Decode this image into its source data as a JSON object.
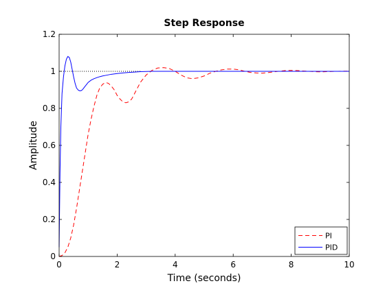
{
  "chart_data": {
    "type": "line",
    "title": "Step Response",
    "xlabel": "Time (seconds)",
    "ylabel": "Amplitude",
    "xlim": [
      0,
      10
    ],
    "ylim": [
      0,
      1.2
    ],
    "xticks": [
      0,
      2,
      4,
      6,
      8,
      10
    ],
    "yticks": [
      0,
      0.2,
      0.4,
      0.6,
      0.8,
      1,
      1.2
    ],
    "xtick_labels": [
      "0",
      "2",
      "4",
      "6",
      "8",
      "10"
    ],
    "ytick_labels": [
      "0",
      "0.2",
      "0.4",
      "0.6",
      "0.8",
      "1",
      "1.2"
    ],
    "grid": false,
    "legend_position": "bottom-right",
    "reference_line": {
      "y": 1,
      "style": "dotted",
      "color": "#000000",
      "x_range": [
        0,
        2.8
      ]
    },
    "series": [
      {
        "name": "PI",
        "color": "#ff0000",
        "style": "dashed",
        "x": [
          0,
          0.1,
          0.2,
          0.3,
          0.4,
          0.5,
          0.6,
          0.7,
          0.8,
          0.9,
          1.0,
          1.1,
          1.2,
          1.3,
          1.4,
          1.5,
          1.6,
          1.7,
          1.8,
          1.9,
          2.0,
          2.1,
          2.2,
          2.3,
          2.4,
          2.5,
          2.6,
          2.7,
          2.8,
          3.0,
          3.2,
          3.4,
          3.6,
          3.8,
          4.0,
          4.2,
          4.4,
          4.6,
          4.8,
          5.0,
          5.2,
          5.4,
          5.6,
          5.8,
          6.0,
          6.2,
          6.4,
          6.6,
          6.8,
          7.0,
          7.2,
          7.4,
          7.6,
          7.8,
          8.0,
          8.2,
          8.4,
          8.6,
          8.8,
          9.0,
          9.2,
          9.4,
          9.6,
          9.8,
          10.0
        ],
        "values": [
          0,
          0.005,
          0.02,
          0.05,
          0.1,
          0.17,
          0.26,
          0.36,
          0.46,
          0.56,
          0.66,
          0.74,
          0.81,
          0.87,
          0.91,
          0.93,
          0.94,
          0.935,
          0.92,
          0.9,
          0.87,
          0.85,
          0.835,
          0.83,
          0.835,
          0.85,
          0.88,
          0.91,
          0.94,
          0.98,
          1.005,
          1.018,
          1.02,
          1.015,
          1.0,
          0.98,
          0.965,
          0.96,
          0.965,
          0.975,
          0.99,
          1.0,
          1.008,
          1.012,
          1.012,
          1.008,
          1.0,
          0.994,
          0.991,
          0.99,
          0.993,
          0.997,
          1.001,
          1.004,
          1.005,
          1.004,
          1.002,
          1.0,
          0.998,
          0.997,
          0.998,
          0.999,
          1.0,
          1.001,
          1.001
        ]
      },
      {
        "name": "PID",
        "color": "#0000ff",
        "style": "solid",
        "x": [
          0,
          0.03,
          0.06,
          0.1,
          0.15,
          0.2,
          0.25,
          0.3,
          0.35,
          0.4,
          0.45,
          0.5,
          0.55,
          0.6,
          0.65,
          0.7,
          0.75,
          0.8,
          0.85,
          0.9,
          0.95,
          1.0,
          1.1,
          1.2,
          1.3,
          1.4,
          1.5,
          1.6,
          1.8,
          2.0,
          2.2,
          2.4,
          2.6,
          2.8,
          3.0,
          3.2,
          3.5,
          4.0,
          5.0,
          6.0,
          7.0,
          8.0,
          9.0,
          10.0
        ],
        "values": [
          0.05,
          0.45,
          0.7,
          0.88,
          0.97,
          1.03,
          1.065,
          1.08,
          1.075,
          1.05,
          1.01,
          0.97,
          0.935,
          0.91,
          0.9,
          0.895,
          0.895,
          0.9,
          0.91,
          0.92,
          0.93,
          0.94,
          0.952,
          0.96,
          0.966,
          0.971,
          0.975,
          0.978,
          0.984,
          0.988,
          0.991,
          0.994,
          0.996,
          0.998,
          0.999,
          1.0,
          1.0,
          1.0,
          1.0,
          1.0,
          1.0,
          1.0,
          1.0,
          1.0
        ]
      }
    ]
  }
}
